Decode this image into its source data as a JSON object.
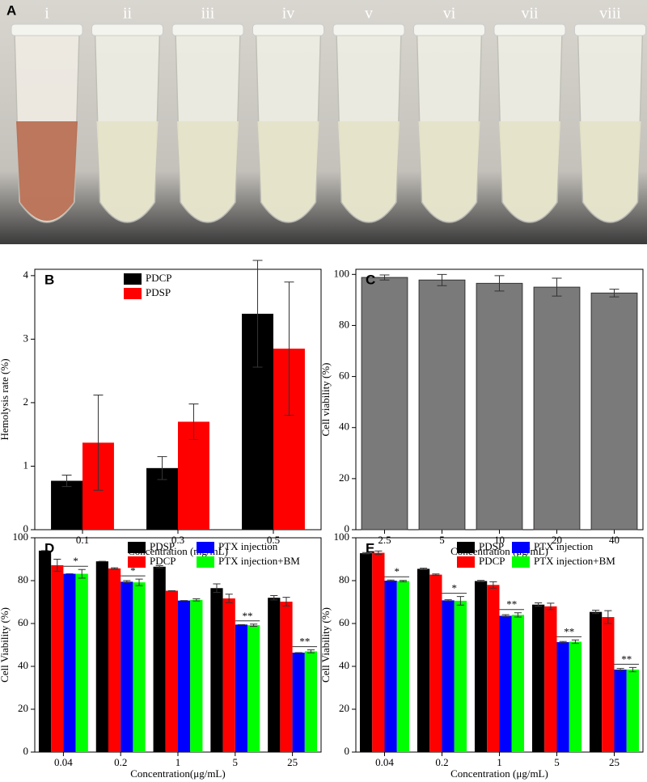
{
  "photo": {
    "label": "A",
    "tube_labels": [
      "i",
      "ii",
      "iii",
      "iv",
      "v",
      "vi",
      "vii",
      "viii"
    ]
  },
  "chart_data": [
    {
      "type": "bar",
      "panel_label": "B",
      "x_label": "Concentration (mg/mL)",
      "y_label": "Hemolysis rate (%)",
      "categories": [
        "0.1",
        "0.3",
        "0.5"
      ],
      "series": [
        {
          "name": "PDCP",
          "color": "#000000",
          "values": [
            0.77,
            0.97,
            3.4
          ],
          "errors": [
            0.09,
            0.18,
            0.84
          ]
        },
        {
          "name": "PDSP",
          "color": "#ff0000",
          "values": [
            1.37,
            1.7,
            2.85
          ],
          "errors": [
            0.75,
            0.28,
            1.05
          ]
        }
      ],
      "ylim": [
        0,
        4.1
      ],
      "yticks": [
        0,
        1,
        2,
        3,
        4
      ]
    },
    {
      "type": "bar",
      "panel_label": "C",
      "x_label": "Concentration (μg/mL)",
      "y_label": "Cell viability (%)",
      "categories": [
        "2.5",
        "5",
        "10",
        "20",
        "40"
      ],
      "color": "#7a7a7a",
      "values": [
        98.8,
        97.8,
        96.5,
        95,
        92.7
      ],
      "errors": [
        1,
        2.2,
        3,
        3.5,
        1.5
      ],
      "ylim": [
        0,
        102
      ],
      "yticks": [
        0,
        20,
        40,
        60,
        80,
        100
      ]
    },
    {
      "type": "bar",
      "panel_label": "D",
      "x_label": "Concentration(μg/mL)",
      "y_label": "Cell Viability (%)",
      "categories": [
        "0.04",
        "0.2",
        "1",
        "5",
        "25"
      ],
      "series": [
        {
          "name": "PDSP",
          "color": "#000000",
          "values": [
            94,
            89,
            86.5,
            76.5,
            72
          ],
          "errors": [
            0,
            0,
            0.5,
            2,
            1
          ]
        },
        {
          "name": "PDCP",
          "color": "#ff0000",
          "values": [
            87.2,
            85.7,
            75.3,
            71.7,
            70.2
          ],
          "errors": [
            2.8,
            0.3,
            0,
            2,
            2
          ]
        },
        {
          "name": "PTX injection",
          "color": "#0000ff",
          "values": [
            83.2,
            79.5,
            70.7,
            59.5,
            46.4
          ],
          "errors": [
            0,
            0.5,
            0,
            0,
            0
          ]
        },
        {
          "name": "PTX injection+BM",
          "color": "#00ff00",
          "values": [
            83.2,
            79.2,
            71,
            59.2,
            47
          ],
          "errors": [
            2,
            1.5,
            0.5,
            0.5,
            0.7
          ],
          "significance": [
            "*",
            "*",
            null,
            "**",
            "**"
          ]
        }
      ],
      "ylim": [
        0,
        100
      ],
      "yticks": [
        0,
        20,
        40,
        60,
        80,
        100
      ]
    },
    {
      "type": "bar",
      "panel_label": "E",
      "x_label": "Concentration (μg/mL)",
      "y_label": "Cell Viability (%)",
      "categories": [
        "0.04",
        "0.2",
        "1",
        "5",
        "25"
      ],
      "series": [
        {
          "name": "PDSP",
          "color": "#000000",
          "values": [
            92.8,
            85.5,
            79.8,
            68.8,
            65.4
          ],
          "errors": [
            0.3,
            0.3,
            0.3,
            0.8,
            0.8
          ]
        },
        {
          "name": "PDCP",
          "color": "#ff0000",
          "values": [
            93,
            82.8,
            78,
            68,
            63
          ],
          "errors": [
            0.8,
            0.3,
            1.5,
            1.5,
            3
          ]
        },
        {
          "name": "PTX injection",
          "color": "#0000ff",
          "values": [
            80,
            70.8,
            63.6,
            51.3,
            38.5
          ],
          "errors": [
            0.3,
            0.3,
            0.5,
            0.3,
            0.5
          ]
        },
        {
          "name": "PTX injection+BM",
          "color": "#00ff00",
          "values": [
            79.8,
            70.6,
            64,
            51.5,
            38.5
          ],
          "errors": [
            0.3,
            2,
            1,
            0.8,
            1
          ],
          "significance": [
            "*",
            "*",
            "**",
            "**",
            "**"
          ]
        }
      ],
      "ylim": [
        0,
        100
      ],
      "yticks": [
        0,
        20,
        40,
        60,
        80,
        100
      ]
    }
  ]
}
